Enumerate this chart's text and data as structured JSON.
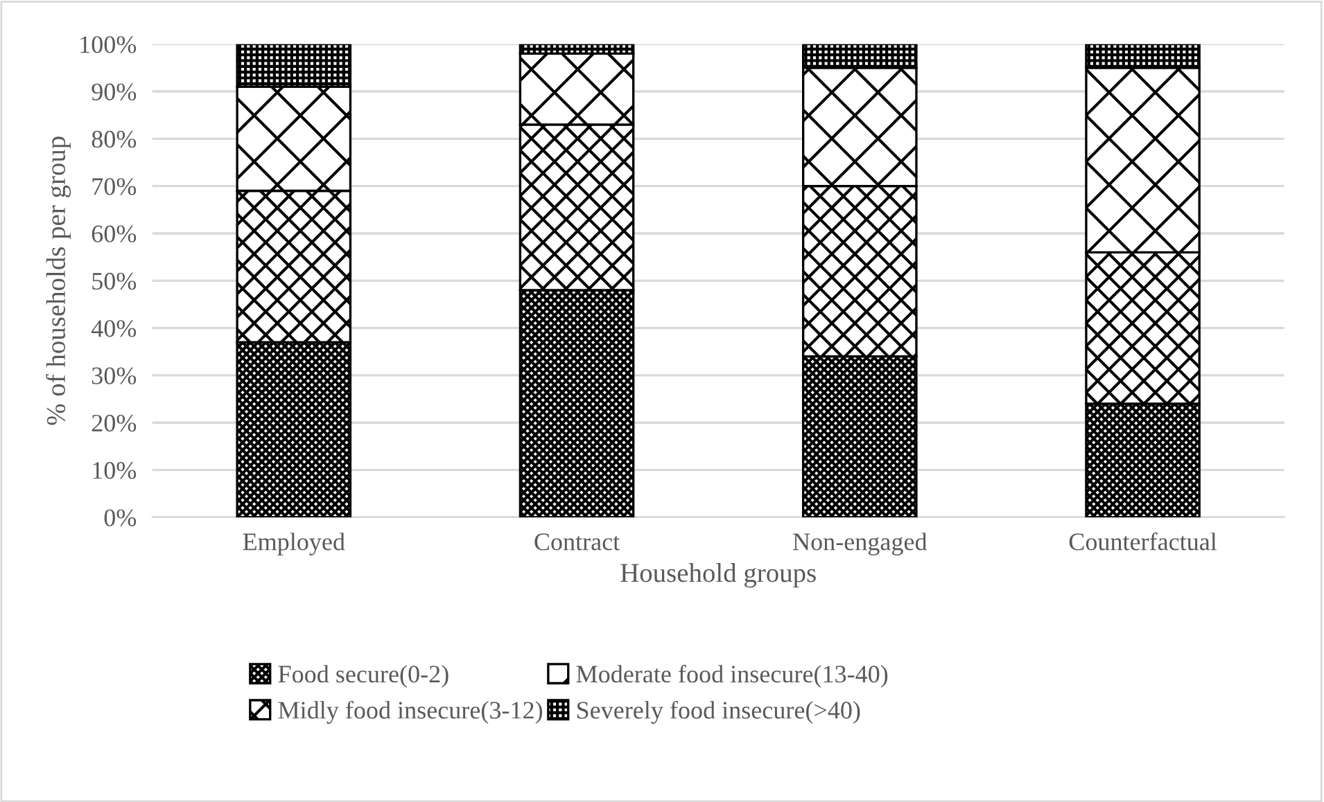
{
  "chart_data": {
    "type": "bar",
    "stacked": true,
    "xlabel": "Household groups",
    "ylabel": "% of households per group",
    "categories": [
      "Employed",
      "Contract",
      "Non-engaged",
      "Counterfactual"
    ],
    "series": [
      {
        "name": "Food secure(0-2)",
        "color": "#000000",
        "values": [
          37,
          48,
          34,
          24
        ]
      },
      {
        "name": "Midly food insecure(3-12)",
        "color": "#000000",
        "values": [
          32,
          35,
          36,
          32
        ]
      },
      {
        "name": "Moderate food insecure(13-40)",
        "color": "#000000",
        "values": [
          22,
          15,
          25,
          39
        ]
      },
      {
        "name": "Severely food insecure(>40)",
        "color": "#000000",
        "values": [
          9,
          2,
          5,
          5
        ]
      }
    ],
    "ylim": [
      0,
      100
    ],
    "yticks": [
      {
        "value": 0,
        "label": "0%"
      },
      {
        "value": 10,
        "label": "10%"
      },
      {
        "value": 20,
        "label": "20%"
      },
      {
        "value": 30,
        "label": "30%"
      },
      {
        "value": 40,
        "label": "40%"
      },
      {
        "value": 50,
        "label": "50%"
      },
      {
        "value": 60,
        "label": "60%"
      },
      {
        "value": 70,
        "label": "70%"
      },
      {
        "value": 80,
        "label": "80%"
      },
      {
        "value": 90,
        "label": "90%"
      },
      {
        "value": 100,
        "label": "100%"
      }
    ],
    "grid": "y",
    "legend": "bottom"
  }
}
